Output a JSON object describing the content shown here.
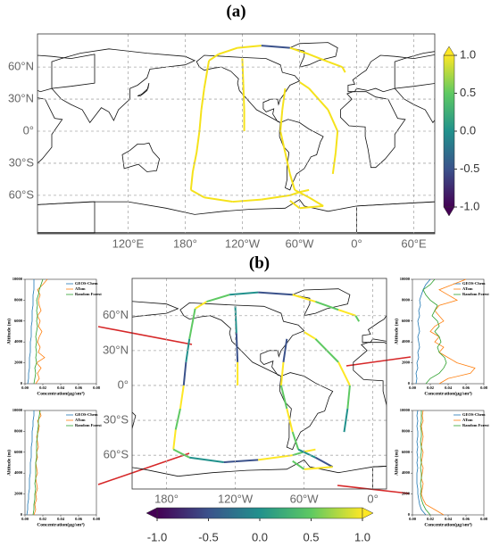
{
  "chart_data": [
    {
      "type": "map",
      "title": "(a)",
      "xlim": [
        25,
        442
      ],
      "ylim": [
        -96,
        91
      ],
      "xticks": [
        {
          "value": 120,
          "label": "120°E"
        },
        {
          "value": 180,
          "label": "180°"
        },
        {
          "value": 240,
          "label": "120°W"
        },
        {
          "value": 300,
          "label": "60°W"
        },
        {
          "value": 360,
          "label": "0°"
        },
        {
          "value": 420,
          "label": "60°E"
        }
      ],
      "yticks": [
        {
          "value": 60,
          "label": "60°N"
        },
        {
          "value": 30,
          "label": "30°N"
        },
        {
          "value": 0,
          "label": "0°"
        },
        {
          "value": -30,
          "label": "30°S"
        },
        {
          "value": -60,
          "label": "60°S"
        }
      ],
      "grid": true,
      "clim": [
        -1,
        1
      ],
      "colorbar_ticks": [
        {
          "value": 1,
          "label": "1.0"
        },
        {
          "value": 0.5,
          "label": "0.5"
        },
        {
          "value": 0,
          "label": "0.0"
        },
        {
          "value": -0.5,
          "label": "-0.5"
        },
        {
          "value": -1,
          "label": "-1.0"
        }
      ],
      "colorbar_orientation": "vertical"
    },
    {
      "type": "map",
      "title": "(b)",
      "xlim": [
        150,
        372
      ],
      "ylim": [
        -89,
        92
      ],
      "xticks": [
        {
          "value": 180,
          "label": "180°"
        },
        {
          "value": 240,
          "label": "120°W"
        },
        {
          "value": 300,
          "label": "60°W"
        },
        {
          "value": 360,
          "label": "0°"
        }
      ],
      "yticks": [
        {
          "value": 60,
          "label": "60°N"
        },
        {
          "value": 30,
          "label": "30°N"
        },
        {
          "value": 0,
          "label": "0°"
        },
        {
          "value": -30,
          "label": "30°S"
        },
        {
          "value": -60,
          "label": "60°S"
        }
      ],
      "grid": true,
      "clim": [
        -1,
        1
      ],
      "colorbar_ticks": [
        {
          "value": -1,
          "label": "-1.0"
        },
        {
          "value": -0.5,
          "label": "-0.5"
        },
        {
          "value": 0,
          "label": "0.0"
        },
        {
          "value": 0.5,
          "label": "0.5"
        },
        {
          "value": 1,
          "label": "1.0"
        }
      ],
      "colorbar_orientation": "horizontal"
    },
    {
      "type": "profile",
      "xlabel": "Concentration(μg/sm³)",
      "ylabel": "Altitude (m)",
      "xlim": [
        0,
        0.08
      ],
      "ylim": [
        0,
        10000
      ],
      "xticks": [
        {
          "value": 0,
          "label": "0.00"
        },
        {
          "value": 0.02,
          "label": "0.02"
        },
        {
          "value": 0.04,
          "label": "0.04"
        },
        {
          "value": 0.06,
          "label": "0.06"
        },
        {
          "value": 0.08,
          "label": "0.08"
        }
      ],
      "yticks": [
        0,
        2000,
        4000,
        6000,
        8000,
        10000
      ],
      "y": [
        0,
        500,
        1000,
        1500,
        2000,
        2500,
        3000,
        3500,
        4000,
        4500,
        5000,
        5500,
        6000,
        6500,
        7000,
        7500,
        8000,
        8500,
        9000,
        9500,
        10000
      ],
      "series": [
        {
          "name": "GEOS-Chem",
          "color": "#1f77b4",
          "values": [
            0.003,
            0.004,
            0.004,
            0.005,
            0.005,
            0.005,
            0.006,
            0.006,
            0.006,
            0.007,
            0.007,
            0.007,
            0.008,
            0.008,
            0.008,
            0.009,
            0.009,
            0.009,
            0.01,
            0.01,
            0.01
          ]
        },
        {
          "name": "ATom",
          "color": "#ff7f0e",
          "values": [
            0.012,
            0.016,
            0.014,
            0.018,
            0.013,
            0.022,
            0.015,
            0.017,
            0.014,
            0.016,
            0.019,
            0.015,
            0.017,
            0.014,
            0.018,
            0.016,
            0.015,
            0.017,
            0.014,
            0.02,
            0.025
          ]
        },
        {
          "name": "Random Forest",
          "color": "#2ca02c",
          "values": [
            0.01,
            0.011,
            0.012,
            0.011,
            0.013,
            0.012,
            0.013,
            0.012,
            0.013,
            0.012,
            0.013,
            0.014,
            0.013,
            0.014,
            0.013,
            0.014,
            0.013,
            0.015,
            0.016,
            0.018,
            0.02
          ]
        }
      ]
    },
    {
      "type": "profile",
      "xlabel": "Concentration(μg/sm³)",
      "ylabel": "Altitude (m)",
      "xlim": [
        0,
        0.08
      ],
      "ylim": [
        0,
        10000
      ],
      "xticks": [
        {
          "value": 0,
          "label": "0.00"
        },
        {
          "value": 0.02,
          "label": "0.02"
        },
        {
          "value": 0.04,
          "label": "0.04"
        },
        {
          "value": 0.06,
          "label": "0.06"
        },
        {
          "value": 0.08,
          "label": "0.08"
        }
      ],
      "yticks": [
        0,
        2000,
        4000,
        6000,
        8000,
        10000
      ],
      "y": [
        0,
        500,
        1000,
        1500,
        2000,
        2500,
        3000,
        3500,
        4000,
        4500,
        5000,
        5500,
        6000,
        6500,
        7000,
        7500,
        8000,
        8500,
        9000,
        9500,
        10000
      ],
      "series": [
        {
          "name": "GEOS-Chem",
          "color": "#1f77b4",
          "values": [
            0.004,
            0.005,
            0.004,
            0.006,
            0.005,
            0.007,
            0.006,
            0.008,
            0.007,
            0.006,
            0.008,
            0.007,
            0.006,
            0.008,
            0.007,
            0.009,
            0.008,
            0.01,
            0.012,
            0.015,
            0.02
          ]
        },
        {
          "name": "ATom",
          "color": "#ff7f0e",
          "values": [
            0.03,
            0.04,
            0.065,
            0.07,
            0.05,
            0.04,
            0.03,
            0.035,
            0.025,
            0.03,
            0.02,
            0.025,
            0.035,
            0.03,
            0.025,
            0.03,
            0.05,
            0.04,
            0.03,
            0.045,
            0.06
          ]
        },
        {
          "name": "Random Forest",
          "color": "#2ca02c",
          "values": [
            0.015,
            0.02,
            0.03,
            0.035,
            0.038,
            0.036,
            0.03,
            0.028,
            0.032,
            0.03,
            0.025,
            0.03,
            0.028,
            0.022,
            0.025,
            0.028,
            0.02,
            0.015,
            0.012,
            0.02,
            0.025
          ]
        }
      ]
    },
    {
      "type": "profile",
      "xlabel": "Concentration(μg/sm³)",
      "ylabel": "Altitude (m)",
      "xlim": [
        0,
        0.08
      ],
      "ylim": [
        0,
        10000
      ],
      "xticks": [
        {
          "value": 0,
          "label": "0.00"
        },
        {
          "value": 0.02,
          "label": "0.02"
        },
        {
          "value": 0.04,
          "label": "0.04"
        },
        {
          "value": 0.06,
          "label": "0.06"
        },
        {
          "value": 0.08,
          "label": "0.08"
        }
      ],
      "yticks": [
        0,
        2000,
        4000,
        6000,
        8000,
        10000
      ],
      "y": [
        0,
        500,
        1000,
        1500,
        2000,
        2500,
        3000,
        3500,
        4000,
        4500,
        5000,
        5500,
        6000,
        6500,
        7000,
        7500,
        8000,
        8500,
        9000,
        9500,
        10000
      ],
      "series": [
        {
          "name": "GEOS-Chem",
          "color": "#1f77b4",
          "values": [
            0.002,
            0.003,
            0.003,
            0.004,
            0.004,
            0.005,
            0.005,
            0.005,
            0.006,
            0.006,
            0.006,
            0.007,
            0.007,
            0.007,
            0.008,
            0.008,
            0.008,
            0.009,
            0.009,
            0.01,
            0.01
          ]
        },
        {
          "name": "ATom",
          "color": "#ff7f0e",
          "values": [
            0.01,
            0.012,
            0.011,
            0.013,
            0.012,
            0.014,
            0.013,
            0.012,
            0.014,
            0.013,
            0.012,
            0.014,
            0.013,
            0.015,
            0.014,
            0.013,
            0.015,
            0.016,
            0.014,
            0.018,
            0.016
          ]
        },
        {
          "name": "Random Forest",
          "color": "#2ca02c",
          "values": [
            0.009,
            0.01,
            0.01,
            0.011,
            0.011,
            0.012,
            0.011,
            0.012,
            0.012,
            0.012,
            0.012,
            0.013,
            0.013,
            0.013,
            0.013,
            0.014,
            0.014,
            0.015,
            0.015,
            0.016,
            0.017
          ]
        }
      ]
    },
    {
      "type": "profile",
      "xlabel": "Concentration(μg/sm³)",
      "ylabel": "Altitude (m)",
      "xlim": [
        0,
        0.08
      ],
      "ylim": [
        0,
        10000
      ],
      "xticks": [
        {
          "value": 0,
          "label": "0.00"
        },
        {
          "value": 0.02,
          "label": "0.02"
        },
        {
          "value": 0.04,
          "label": "0.04"
        },
        {
          "value": 0.06,
          "label": "0.06"
        },
        {
          "value": 0.08,
          "label": "0.08"
        }
      ],
      "yticks": [
        0,
        2000,
        4000,
        6000,
        8000,
        10000
      ],
      "y": [
        0,
        500,
        1000,
        1500,
        2000,
        2500,
        3000,
        3500,
        4000,
        4500,
        5000,
        5500,
        6000,
        6500,
        7000,
        7500,
        8000,
        8500,
        9000,
        9500,
        10000
      ],
      "series": [
        {
          "name": "GEOS-Chem",
          "color": "#1f77b4",
          "values": [
            0.015,
            0.01,
            0.008,
            0.007,
            0.006,
            0.006,
            0.005,
            0.005,
            0.005,
            0.006,
            0.005,
            0.006,
            0.005,
            0.006,
            0.005,
            0.006,
            0.006,
            0.005,
            0.006,
            0.005,
            0.006
          ]
        },
        {
          "name": "ATom",
          "color": "#ff7f0e",
          "values": [
            0.035,
            0.025,
            0.015,
            0.012,
            0.01,
            0.011,
            0.012,
            0.01,
            0.011,
            0.012,
            0.01,
            0.011,
            0.012,
            0.01,
            0.011,
            0.012,
            0.011,
            0.01,
            0.012,
            0.011,
            0.012
          ]
        },
        {
          "name": "Random Forest",
          "color": "#2ca02c",
          "values": [
            0.02,
            0.015,
            0.012,
            0.01,
            0.009,
            0.01,
            0.009,
            0.01,
            0.01,
            0.009,
            0.01,
            0.009,
            0.01,
            0.01,
            0.009,
            0.01,
            0.01,
            0.009,
            0.01,
            0.01,
            0.01
          ]
        }
      ]
    }
  ]
}
